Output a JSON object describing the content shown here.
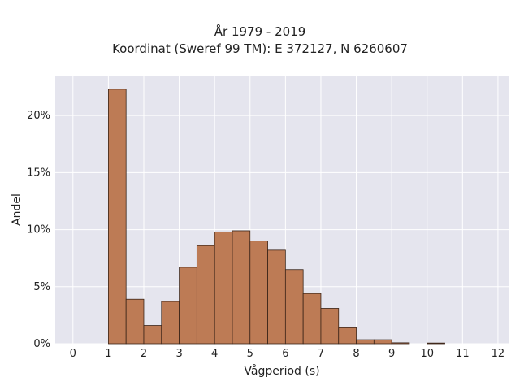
{
  "chart_data": {
    "type": "bar",
    "title": "År 1979 - 2019",
    "subtitle": "Koordinat (Sweref 99 TM): E 372127, N 6260607",
    "xlabel": "Vågperiod (s)",
    "ylabel": "Andel",
    "xlim": [
      -0.5,
      12.3
    ],
    "ylim": [
      0,
      23.5
    ],
    "x_ticks": [
      0,
      1,
      2,
      3,
      4,
      5,
      6,
      7,
      8,
      9,
      10,
      11,
      12
    ],
    "y_ticks": [
      0,
      5,
      10,
      15,
      20
    ],
    "y_tick_labels": [
      "0%",
      "5%",
      "10%",
      "15%",
      "20%"
    ],
    "bin_width": 0.5,
    "bins": [
      {
        "x0": 1.0,
        "value": 22.3
      },
      {
        "x0": 1.5,
        "value": 3.9
      },
      {
        "x0": 2.0,
        "value": 1.6
      },
      {
        "x0": 2.5,
        "value": 3.7
      },
      {
        "x0": 3.0,
        "value": 6.7
      },
      {
        "x0": 3.5,
        "value": 8.6
      },
      {
        "x0": 4.0,
        "value": 9.8
      },
      {
        "x0": 4.5,
        "value": 9.9
      },
      {
        "x0": 5.0,
        "value": 9.0
      },
      {
        "x0": 5.5,
        "value": 8.2
      },
      {
        "x0": 6.0,
        "value": 6.5
      },
      {
        "x0": 6.5,
        "value": 4.4
      },
      {
        "x0": 7.0,
        "value": 3.1
      },
      {
        "x0": 7.5,
        "value": 1.4
      },
      {
        "x0": 8.0,
        "value": 0.35
      },
      {
        "x0": 8.5,
        "value": 0.35
      },
      {
        "x0": 9.0,
        "value": 0.08
      },
      {
        "x0": 10.0,
        "value": 0.06
      }
    ],
    "grid": true,
    "colors": {
      "bar_fill": "#bd7b55",
      "bar_edge": "#3a2418",
      "plot_bg": "#e5e5ee",
      "grid": "#ffffff"
    }
  }
}
